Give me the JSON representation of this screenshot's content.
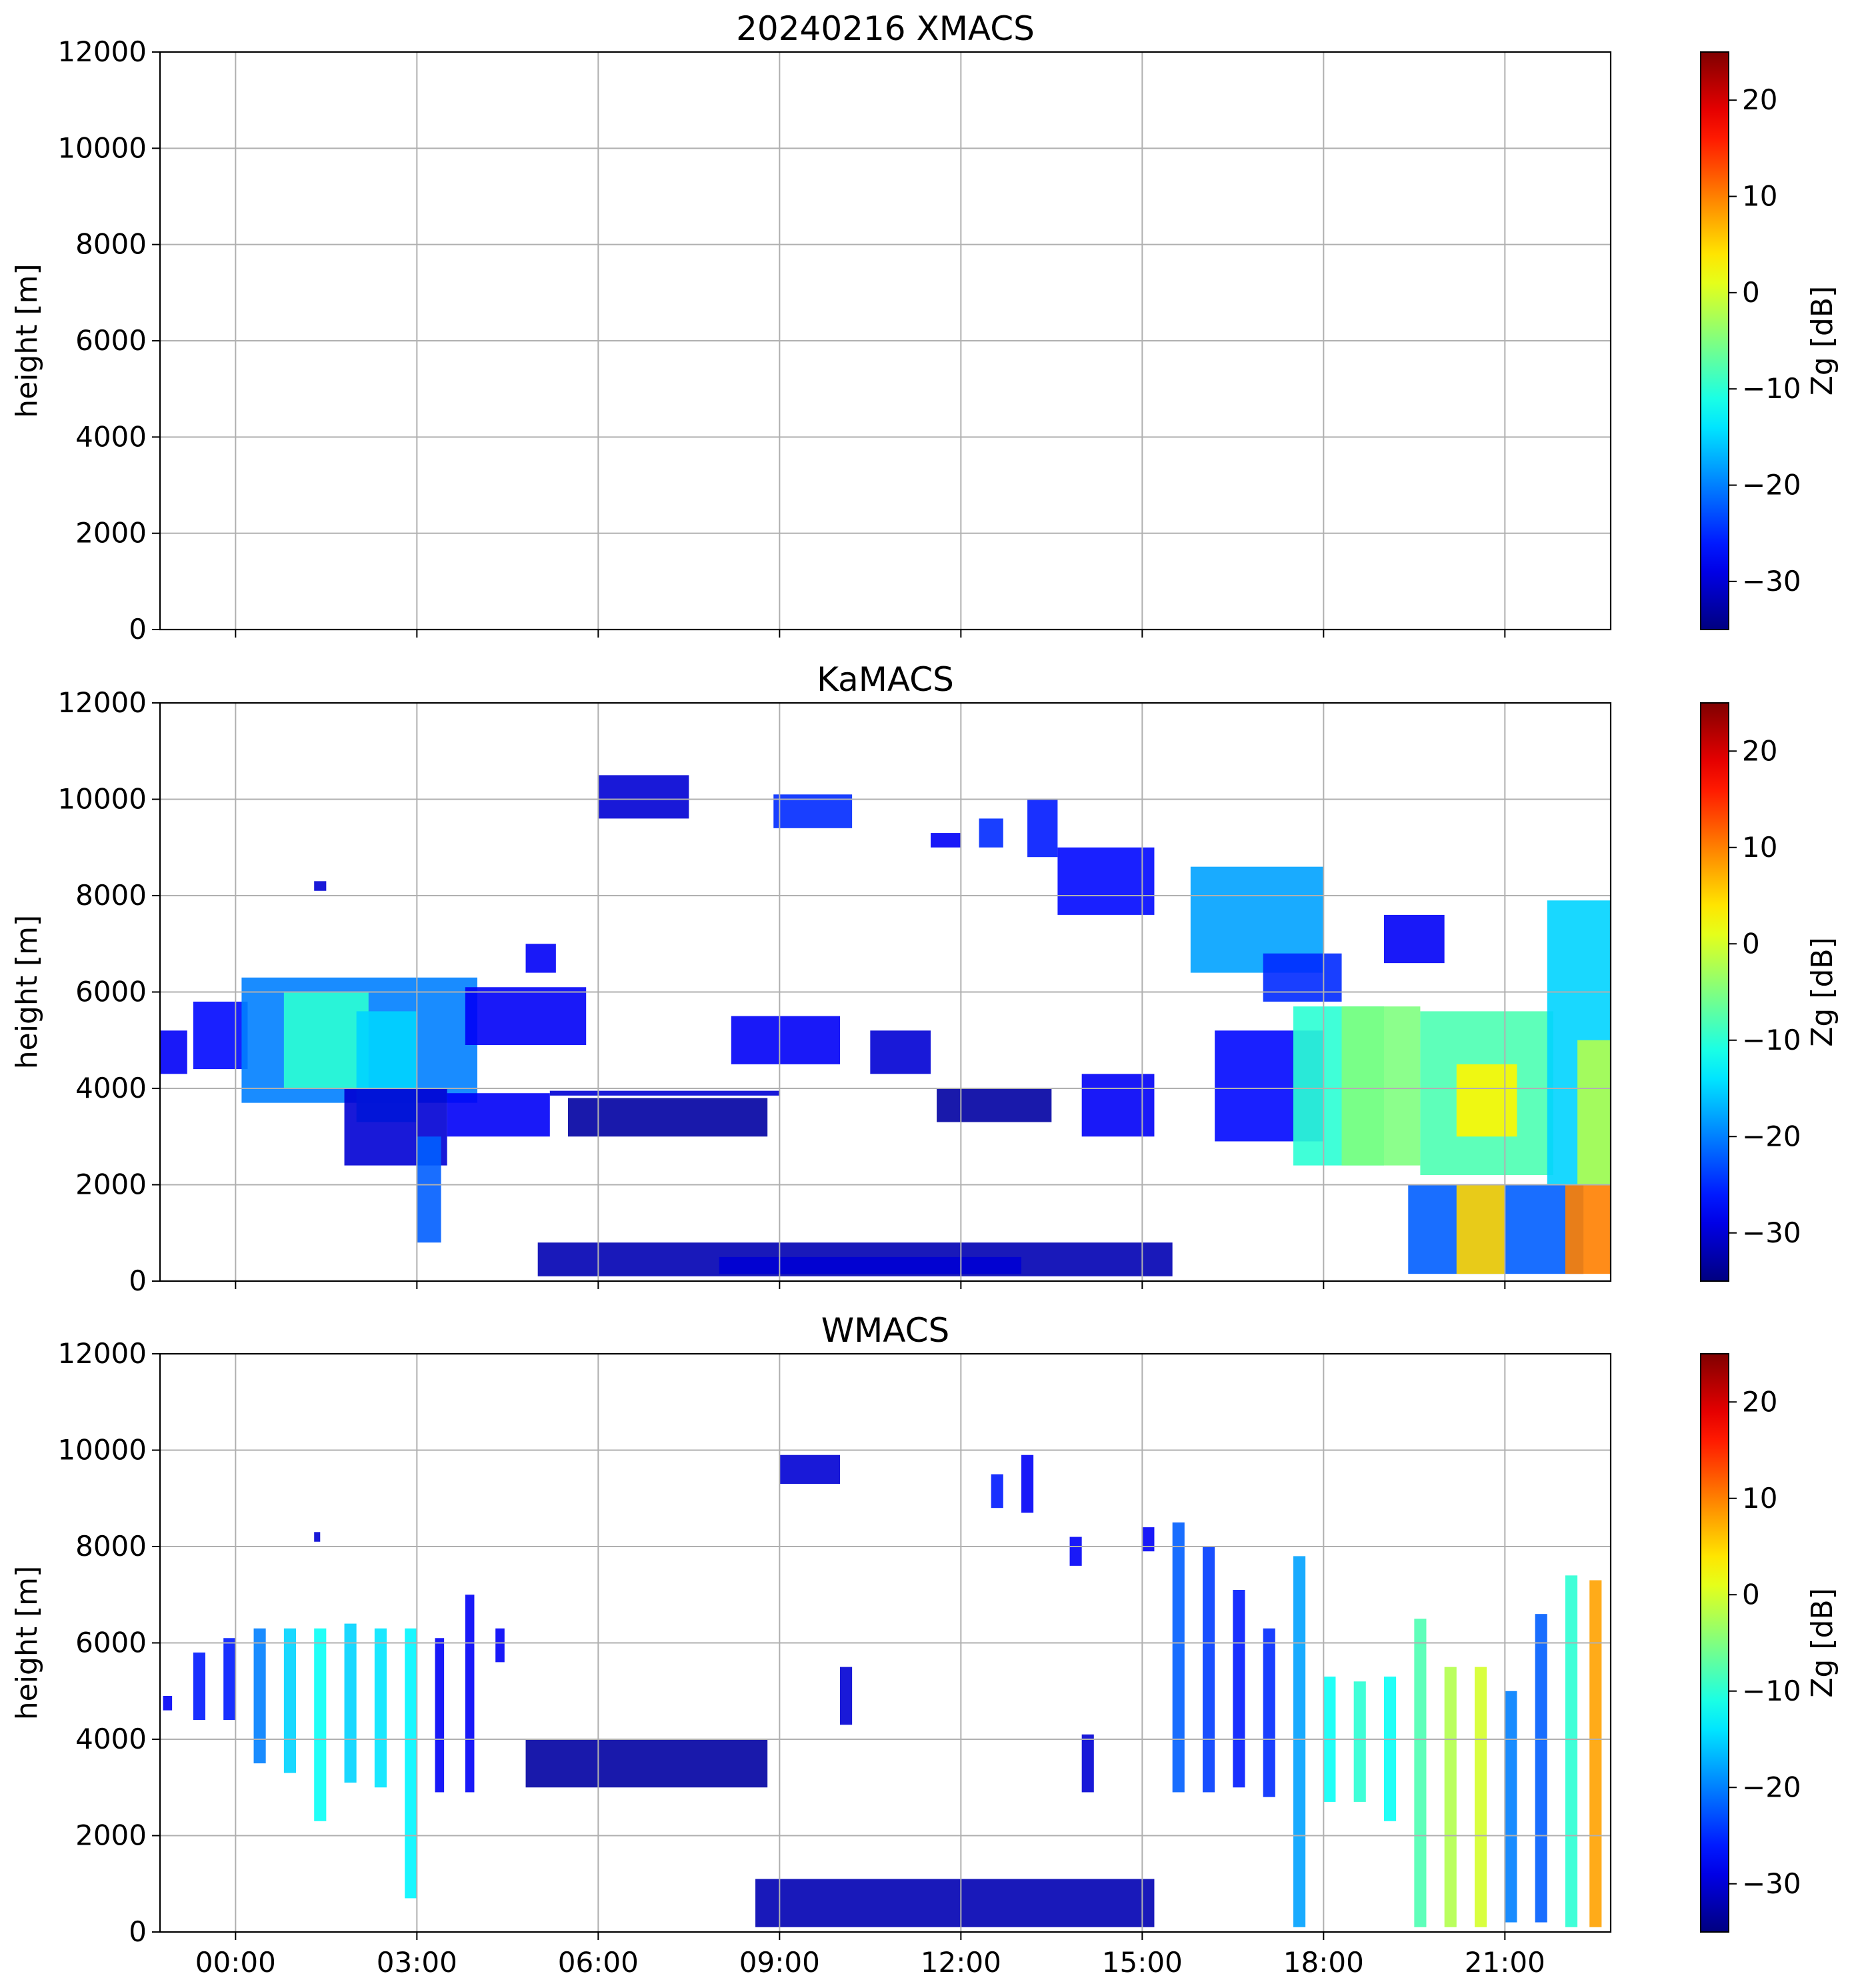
{
  "chart_data": [
    {
      "type": "heatmap",
      "title": "20240216 XMACS",
      "ylabel": "height [m]",
      "ylim": [
        0,
        12000
      ],
      "yticks": [
        "0",
        "2000",
        "4000",
        "6000",
        "8000",
        "10000",
        "12000"
      ],
      "xlim_hours": [
        -1.25,
        22.75
      ],
      "xtick_labels": [],
      "grid": true,
      "colorbar": {
        "label": "Zg [dB]",
        "range": [
          -35,
          25
        ],
        "ticks": [
          -30,
          -20,
          -10,
          0,
          10,
          20
        ],
        "tick_labels": [
          "−30",
          "−20",
          "−10",
          "0",
          "10",
          "20"
        ],
        "colormap": "jet"
      },
      "echoes": []
    },
    {
      "type": "heatmap",
      "title": "KaMACS",
      "ylabel": "height [m]",
      "ylim": [
        0,
        12000
      ],
      "yticks": [
        "0",
        "2000",
        "4000",
        "6000",
        "8000",
        "10000",
        "12000"
      ],
      "xlim_hours": [
        -1.25,
        22.75
      ],
      "xtick_labels": [],
      "grid": true,
      "colorbar": {
        "label": "Zg [dB]",
        "range": [
          -35,
          25
        ],
        "ticks": [
          -30,
          -20,
          -10,
          0,
          10,
          20
        ],
        "tick_labels": [
          "−30",
          "−20",
          "−10",
          "0",
          "10",
          "20"
        ],
        "colormap": "jet"
      },
      "echoes": [
        {
          "t0": -1.25,
          "t1": -0.8,
          "h0": 4300,
          "h1": 5200,
          "z": -28
        },
        {
          "t0": -0.7,
          "t1": 0.2,
          "h0": 4400,
          "h1": 5800,
          "z": -27
        },
        {
          "t0": 0.1,
          "t1": 4.0,
          "h0": 3700,
          "h1": 6300,
          "z": -20
        },
        {
          "t0": 0.8,
          "t1": 2.2,
          "h0": 4000,
          "h1": 6000,
          "z": -10
        },
        {
          "t0": 2.0,
          "t1": 3.0,
          "h0": 3300,
          "h1": 5600,
          "z": -15
        },
        {
          "t0": 1.8,
          "t1": 3.5,
          "h0": 2400,
          "h1": 4000,
          "z": -30
        },
        {
          "t0": 3.0,
          "t1": 3.4,
          "h0": 800,
          "h1": 3000,
          "z": -22
        },
        {
          "t0": 3.5,
          "t1": 5.2,
          "h0": 3000,
          "h1": 3900,
          "z": -28
        },
        {
          "t0": 3.8,
          "t1": 5.8,
          "h0": 4900,
          "h1": 6100,
          "z": -28
        },
        {
          "t0": 5.2,
          "t1": 9.0,
          "h0": 3850,
          "h1": 3950,
          "z": -30
        },
        {
          "t0": 5.5,
          "t1": 8.8,
          "h0": 3000,
          "h1": 3800,
          "z": -33
        },
        {
          "t0": 4.8,
          "t1": 5.3,
          "h0": 6400,
          "h1": 7000,
          "z": -28
        },
        {
          "t0": 1.3,
          "t1": 1.5,
          "h0": 8100,
          "h1": 8300,
          "z": -30
        },
        {
          "t0": 6.0,
          "t1": 7.5,
          "h0": 9600,
          "h1": 10500,
          "z": -30
        },
        {
          "t0": 8.9,
          "t1": 10.2,
          "h0": 9400,
          "h1": 10100,
          "z": -25
        },
        {
          "t0": 8.2,
          "t1": 10.0,
          "h0": 4500,
          "h1": 5500,
          "z": -28
        },
        {
          "t0": 10.5,
          "t1": 11.5,
          "h0": 4300,
          "h1": 5200,
          "z": -30
        },
        {
          "t0": 11.5,
          "t1": 12.0,
          "h0": 9000,
          "h1": 9300,
          "z": -28
        },
        {
          "t0": 12.3,
          "t1": 12.7,
          "h0": 9000,
          "h1": 9600,
          "z": -25
        },
        {
          "t0": 13.1,
          "t1": 13.6,
          "h0": 8800,
          "h1": 10000,
          "z": -26
        },
        {
          "t0": 13.6,
          "t1": 15.2,
          "h0": 7600,
          "h1": 9000,
          "z": -27
        },
        {
          "t0": 14.0,
          "t1": 15.2,
          "h0": 3000,
          "h1": 4300,
          "z": -28
        },
        {
          "t0": 11.6,
          "t1": 13.5,
          "h0": 3300,
          "h1": 4000,
          "z": -33
        },
        {
          "t0": 15.8,
          "t1": 18.0,
          "h0": 6400,
          "h1": 8600,
          "z": -18
        },
        {
          "t0": 17.0,
          "t1": 18.3,
          "h0": 5800,
          "h1": 6800,
          "z": -25
        },
        {
          "t0": 16.2,
          "t1": 18.0,
          "h0": 2900,
          "h1": 5200,
          "z": -27
        },
        {
          "t0": 17.5,
          "t1": 19.0,
          "h0": 2400,
          "h1": 5700,
          "z": -10
        },
        {
          "t0": 18.3,
          "t1": 19.6,
          "h0": 2400,
          "h1": 5700,
          "z": -5
        },
        {
          "t0": 19.0,
          "t1": 20.0,
          "h0": 6600,
          "h1": 7600,
          "z": -28
        },
        {
          "t0": 19.6,
          "t1": 21.8,
          "h0": 2200,
          "h1": 5600,
          "z": -8
        },
        {
          "t0": 20.2,
          "t1": 21.2,
          "h0": 3000,
          "h1": 4500,
          "z": 3
        },
        {
          "t0": 19.4,
          "t1": 22.3,
          "h0": 150,
          "h1": 2000,
          "z": -22
        },
        {
          "t0": 20.2,
          "t1": 21.0,
          "h0": 150,
          "h1": 2000,
          "z": 5
        },
        {
          "t0": 22.0,
          "t1": 22.75,
          "h0": 150,
          "h1": 2000,
          "z": 10
        },
        {
          "t0": 21.7,
          "t1": 22.75,
          "h0": 2000,
          "h1": 7900,
          "z": -15
        },
        {
          "t0": 22.2,
          "t1": 22.75,
          "h0": 2000,
          "h1": 5000,
          "z": -2
        },
        {
          "t0": 5.0,
          "t1": 15.5,
          "h0": 100,
          "h1": 800,
          "z": -32
        },
        {
          "t0": 8.0,
          "t1": 13.0,
          "h0": 150,
          "h1": 500,
          "z": -30
        }
      ]
    },
    {
      "type": "heatmap",
      "title": "WMACS",
      "ylabel": "height [m]",
      "ylim": [
        0,
        12000
      ],
      "yticks": [
        "0",
        "2000",
        "4000",
        "6000",
        "8000",
        "10000",
        "12000"
      ],
      "xlim_hours": [
        -1.25,
        22.75
      ],
      "xtick_labels": [
        "00:00",
        "03:00",
        "06:00",
        "09:00",
        "12:00",
        "15:00",
        "18:00",
        "21:00"
      ],
      "xtick_hours": [
        0,
        3,
        6,
        9,
        12,
        15,
        18,
        21
      ],
      "grid": true,
      "colorbar": {
        "label": "Zg [dB]",
        "range": [
          -35,
          25
        ],
        "ticks": [
          -30,
          -20,
          -10,
          0,
          10,
          20
        ],
        "tick_labels": [
          "−30",
          "−20",
          "−10",
          "0",
          "10",
          "20"
        ],
        "colormap": "jet"
      },
      "echoes": [
        {
          "t0": -1.2,
          "t1": -1.05,
          "h0": 4600,
          "h1": 4900,
          "z": -28
        },
        {
          "t0": -0.7,
          "t1": -0.5,
          "h0": 4400,
          "h1": 5800,
          "z": -26
        },
        {
          "t0": -0.2,
          "t1": 0.0,
          "h0": 4400,
          "h1": 6100,
          "z": -26
        },
        {
          "t0": 0.3,
          "t1": 0.5,
          "h0": 3500,
          "h1": 6300,
          "z": -20
        },
        {
          "t0": 0.8,
          "t1": 1.0,
          "h0": 3300,
          "h1": 6300,
          "z": -15
        },
        {
          "t0": 1.3,
          "t1": 1.5,
          "h0": 2300,
          "h1": 6300,
          "z": -12
        },
        {
          "t0": 1.8,
          "t1": 2.0,
          "h0": 3100,
          "h1": 6400,
          "z": -15
        },
        {
          "t0": 2.3,
          "t1": 2.5,
          "h0": 3000,
          "h1": 6300,
          "z": -14
        },
        {
          "t0": 2.8,
          "t1": 3.0,
          "h0": 700,
          "h1": 6300,
          "z": -13
        },
        {
          "t0": 3.3,
          "t1": 3.45,
          "h0": 2900,
          "h1": 6100,
          "z": -28
        },
        {
          "t0": 3.8,
          "t1": 3.95,
          "h0": 2900,
          "h1": 7000,
          "z": -28
        },
        {
          "t0": 4.3,
          "t1": 4.45,
          "h0": 5600,
          "h1": 6300,
          "z": -28
        },
        {
          "t0": 1.3,
          "t1": 1.4,
          "h0": 8100,
          "h1": 8300,
          "z": -30
        },
        {
          "t0": 4.8,
          "t1": 8.8,
          "h0": 3000,
          "h1": 4000,
          "z": -33
        },
        {
          "t0": 9.0,
          "t1": 10.0,
          "h0": 9300,
          "h1": 9900,
          "z": -30
        },
        {
          "t0": 10.0,
          "t1": 10.2,
          "h0": 4300,
          "h1": 5500,
          "z": -30
        },
        {
          "t0": 12.5,
          "t1": 12.7,
          "h0": 8800,
          "h1": 9500,
          "z": -26
        },
        {
          "t0": 13.0,
          "t1": 13.2,
          "h0": 8700,
          "h1": 9900,
          "z": -28
        },
        {
          "t0": 13.8,
          "t1": 14.0,
          "h0": 7600,
          "h1": 8200,
          "z": -28
        },
        {
          "t0": 14.0,
          "t1": 14.2,
          "h0": 2900,
          "h1": 4100,
          "z": -30
        },
        {
          "t0": 15.0,
          "t1": 15.2,
          "h0": 7900,
          "h1": 8400,
          "z": -28
        },
        {
          "t0": 15.5,
          "t1": 15.7,
          "h0": 2900,
          "h1": 8500,
          "z": -22
        },
        {
          "t0": 16.0,
          "t1": 16.2,
          "h0": 2900,
          "h1": 8000,
          "z": -24
        },
        {
          "t0": 16.5,
          "t1": 16.7,
          "h0": 3000,
          "h1": 7100,
          "z": -26
        },
        {
          "t0": 17.0,
          "t1": 17.2,
          "h0": 2800,
          "h1": 6300,
          "z": -25
        },
        {
          "t0": 17.5,
          "t1": 17.7,
          "h0": 100,
          "h1": 7800,
          "z": -18
        },
        {
          "t0": 18.0,
          "t1": 18.2,
          "h0": 2700,
          "h1": 5300,
          "z": -12
        },
        {
          "t0": 18.5,
          "t1": 18.7,
          "h0": 2700,
          "h1": 5200,
          "z": -10
        },
        {
          "t0": 19.0,
          "t1": 19.2,
          "h0": 2300,
          "h1": 5300,
          "z": -12
        },
        {
          "t0": 19.5,
          "t1": 19.7,
          "h0": 100,
          "h1": 6500,
          "z": -8
        },
        {
          "t0": 20.0,
          "t1": 20.2,
          "h0": 100,
          "h1": 5500,
          "z": -2
        },
        {
          "t0": 20.5,
          "t1": 20.7,
          "h0": 100,
          "h1": 5500,
          "z": 0
        },
        {
          "t0": 21.0,
          "t1": 21.2,
          "h0": 200,
          "h1": 5000,
          "z": -20
        },
        {
          "t0": 21.5,
          "t1": 21.7,
          "h0": 200,
          "h1": 6600,
          "z": -22
        },
        {
          "t0": 22.0,
          "t1": 22.2,
          "h0": 100,
          "h1": 7400,
          "z": -10
        },
        {
          "t0": 22.4,
          "t1": 22.6,
          "h0": 100,
          "h1": 7300,
          "z": 8
        },
        {
          "t0": 8.6,
          "t1": 15.2,
          "h0": 100,
          "h1": 1100,
          "z": -32
        }
      ]
    }
  ]
}
